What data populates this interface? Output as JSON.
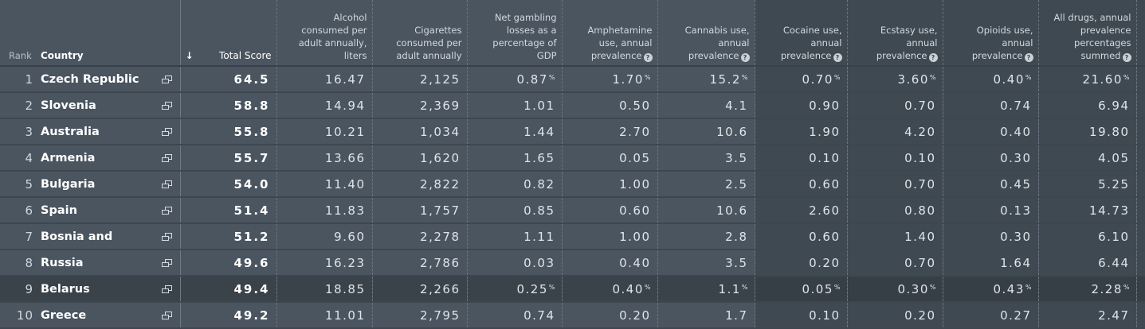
{
  "headers": {
    "rank": "Rank",
    "country": "Country",
    "sort_arrow": "↓",
    "total": "Total Score",
    "alcohol": [
      "Alcohol",
      "consumed per",
      "adult annually,",
      "liters"
    ],
    "cigarettes": [
      "Cigarettes",
      "consumed per",
      "adult annually"
    ],
    "gambling": [
      "Net gambling",
      "losses as a",
      "percentage of",
      "GDP"
    ],
    "amphetamine": [
      "Amphetamine",
      "use, annual",
      "prevalence"
    ],
    "cannabis": [
      "Cannabis use,",
      "annual",
      "prevalence"
    ],
    "cocaine": [
      "Cocaine use,",
      "annual",
      "prevalence"
    ],
    "ecstasy": [
      "Ecstasy use,",
      "annual",
      "prevalence"
    ],
    "opioids": [
      "Opioids use,",
      "annual",
      "prevalence"
    ],
    "alldrugs": [
      "All drugs, annual",
      "prevalence",
      "percentages",
      "summed"
    ],
    "help_icon": "question-icon"
  },
  "rows": [
    {
      "rank": "1",
      "country": "Czech Republic",
      "total": "64.5",
      "alcohol": "16.47",
      "cigarettes": "2,125",
      "gambling": "0.87",
      "gambling_pct": "%",
      "amphetamine": "1.70",
      "amphetamine_pct": "%",
      "cannabis": "15.2",
      "cannabis_pct": "%",
      "cocaine": "0.70",
      "cocaine_pct": "%",
      "ecstasy": "3.60",
      "ecstasy_pct": "%",
      "opioids": "0.40",
      "opioids_pct": "%",
      "alldrugs": "21.60",
      "alldrugs_pct": "%"
    },
    {
      "rank": "2",
      "country": "Slovenia",
      "total": "58.8",
      "alcohol": "14.94",
      "cigarettes": "2,369",
      "gambling": "1.01",
      "amphetamine": "0.50",
      "cannabis": "4.1",
      "cocaine": "0.90",
      "ecstasy": "0.70",
      "opioids": "0.74",
      "alldrugs": "6.94"
    },
    {
      "rank": "3",
      "country": "Australia",
      "total": "55.8",
      "alcohol": "10.21",
      "cigarettes": "1,034",
      "gambling": "1.44",
      "amphetamine": "2.70",
      "cannabis": "10.6",
      "cocaine": "1.90",
      "ecstasy": "4.20",
      "opioids": "0.40",
      "alldrugs": "19.80"
    },
    {
      "rank": "4",
      "country": "Armenia",
      "total": "55.7",
      "alcohol": "13.66",
      "cigarettes": "1,620",
      "gambling": "1.65",
      "amphetamine": "0.05",
      "cannabis": "3.5",
      "cocaine": "0.10",
      "ecstasy": "0.10",
      "opioids": "0.30",
      "alldrugs": "4.05"
    },
    {
      "rank": "5",
      "country": "Bulgaria",
      "total": "54.0",
      "alcohol": "11.40",
      "cigarettes": "2,822",
      "gambling": "0.82",
      "amphetamine": "1.00",
      "cannabis": "2.5",
      "cocaine": "0.60",
      "ecstasy": "0.70",
      "opioids": "0.45",
      "alldrugs": "5.25"
    },
    {
      "rank": "6",
      "country": "Spain",
      "total": "51.4",
      "alcohol": "11.83",
      "cigarettes": "1,757",
      "gambling": "0.85",
      "amphetamine": "0.60",
      "cannabis": "10.6",
      "cocaine": "2.60",
      "ecstasy": "0.80",
      "opioids": "0.13",
      "alldrugs": "14.73"
    },
    {
      "rank": "7",
      "country": "Bosnia and",
      "total": "51.2",
      "alcohol": "9.60",
      "cigarettes": "2,278",
      "gambling": "1.11",
      "amphetamine": "1.00",
      "cannabis": "2.8",
      "cocaine": "0.60",
      "ecstasy": "1.40",
      "opioids": "0.30",
      "alldrugs": "6.10"
    },
    {
      "rank": "8",
      "country": "Russia",
      "total": "49.6",
      "alcohol": "16.23",
      "cigarettes": "2,786",
      "gambling": "0.03",
      "amphetamine": "0.40",
      "cannabis": "3.5",
      "cocaine": "0.20",
      "ecstasy": "0.70",
      "opioids": "1.64",
      "alldrugs": "6.44"
    },
    {
      "rank": "9",
      "country": "Belarus",
      "total": "49.4",
      "alcohol": "18.85",
      "cigarettes": "2,266",
      "gambling": "0.25",
      "gambling_pct": "%",
      "amphetamine": "0.40",
      "amphetamine_pct": "%",
      "cannabis": "1.1",
      "cannabis_pct": "%",
      "cocaine": "0.05",
      "cocaine_pct": "%",
      "ecstasy": "0.30",
      "ecstasy_pct": "%",
      "opioids": "0.43",
      "opioids_pct": "%",
      "alldrugs": "2.28",
      "alldrugs_pct": "%",
      "highlighted": true
    },
    {
      "rank": "10",
      "country": "Greece",
      "total": "49.2",
      "alcohol": "11.01",
      "cigarettes": "2,795",
      "gambling": "0.74",
      "amphetamine": "0.20",
      "cannabis": "1.7",
      "cocaine": "0.10",
      "ecstasy": "0.20",
      "opioids": "0.27",
      "alldrugs": "2.47"
    }
  ],
  "colors": {
    "background": "#4a5560",
    "drug_band": "#3f4952",
    "highlight": "#3a424a",
    "text": "#dfe4e8"
  }
}
